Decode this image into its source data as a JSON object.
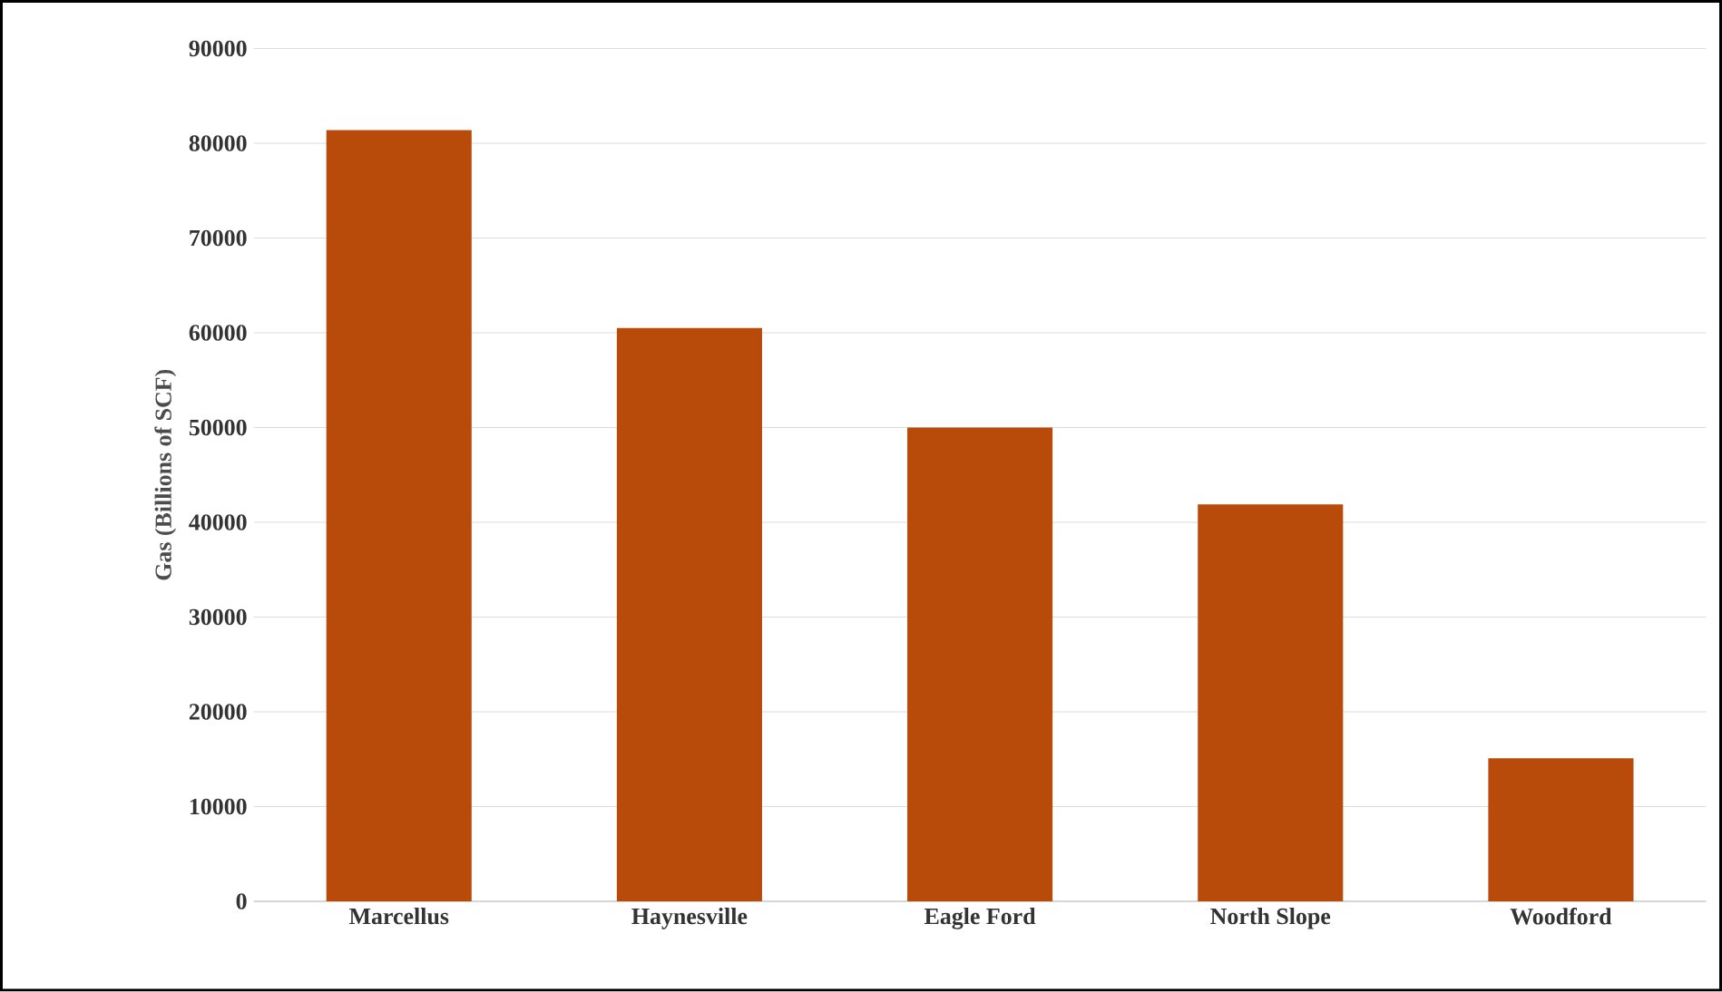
{
  "chart_data": {
    "type": "bar",
    "ylabel": "Gas (Billions of SCF)",
    "categories": [
      "Marcellus",
      "Haynesville",
      "Eagle Ford",
      "North Slope",
      "Woodford"
    ],
    "values": [
      81400,
      60500,
      50000,
      41900,
      15100
    ],
    "color": "#b84a0a",
    "ylim": [
      0,
      90000
    ],
    "yticks": [
      0,
      10000,
      20000,
      30000,
      40000,
      50000,
      60000,
      70000,
      80000,
      90000
    ],
    "grid": "y"
  }
}
